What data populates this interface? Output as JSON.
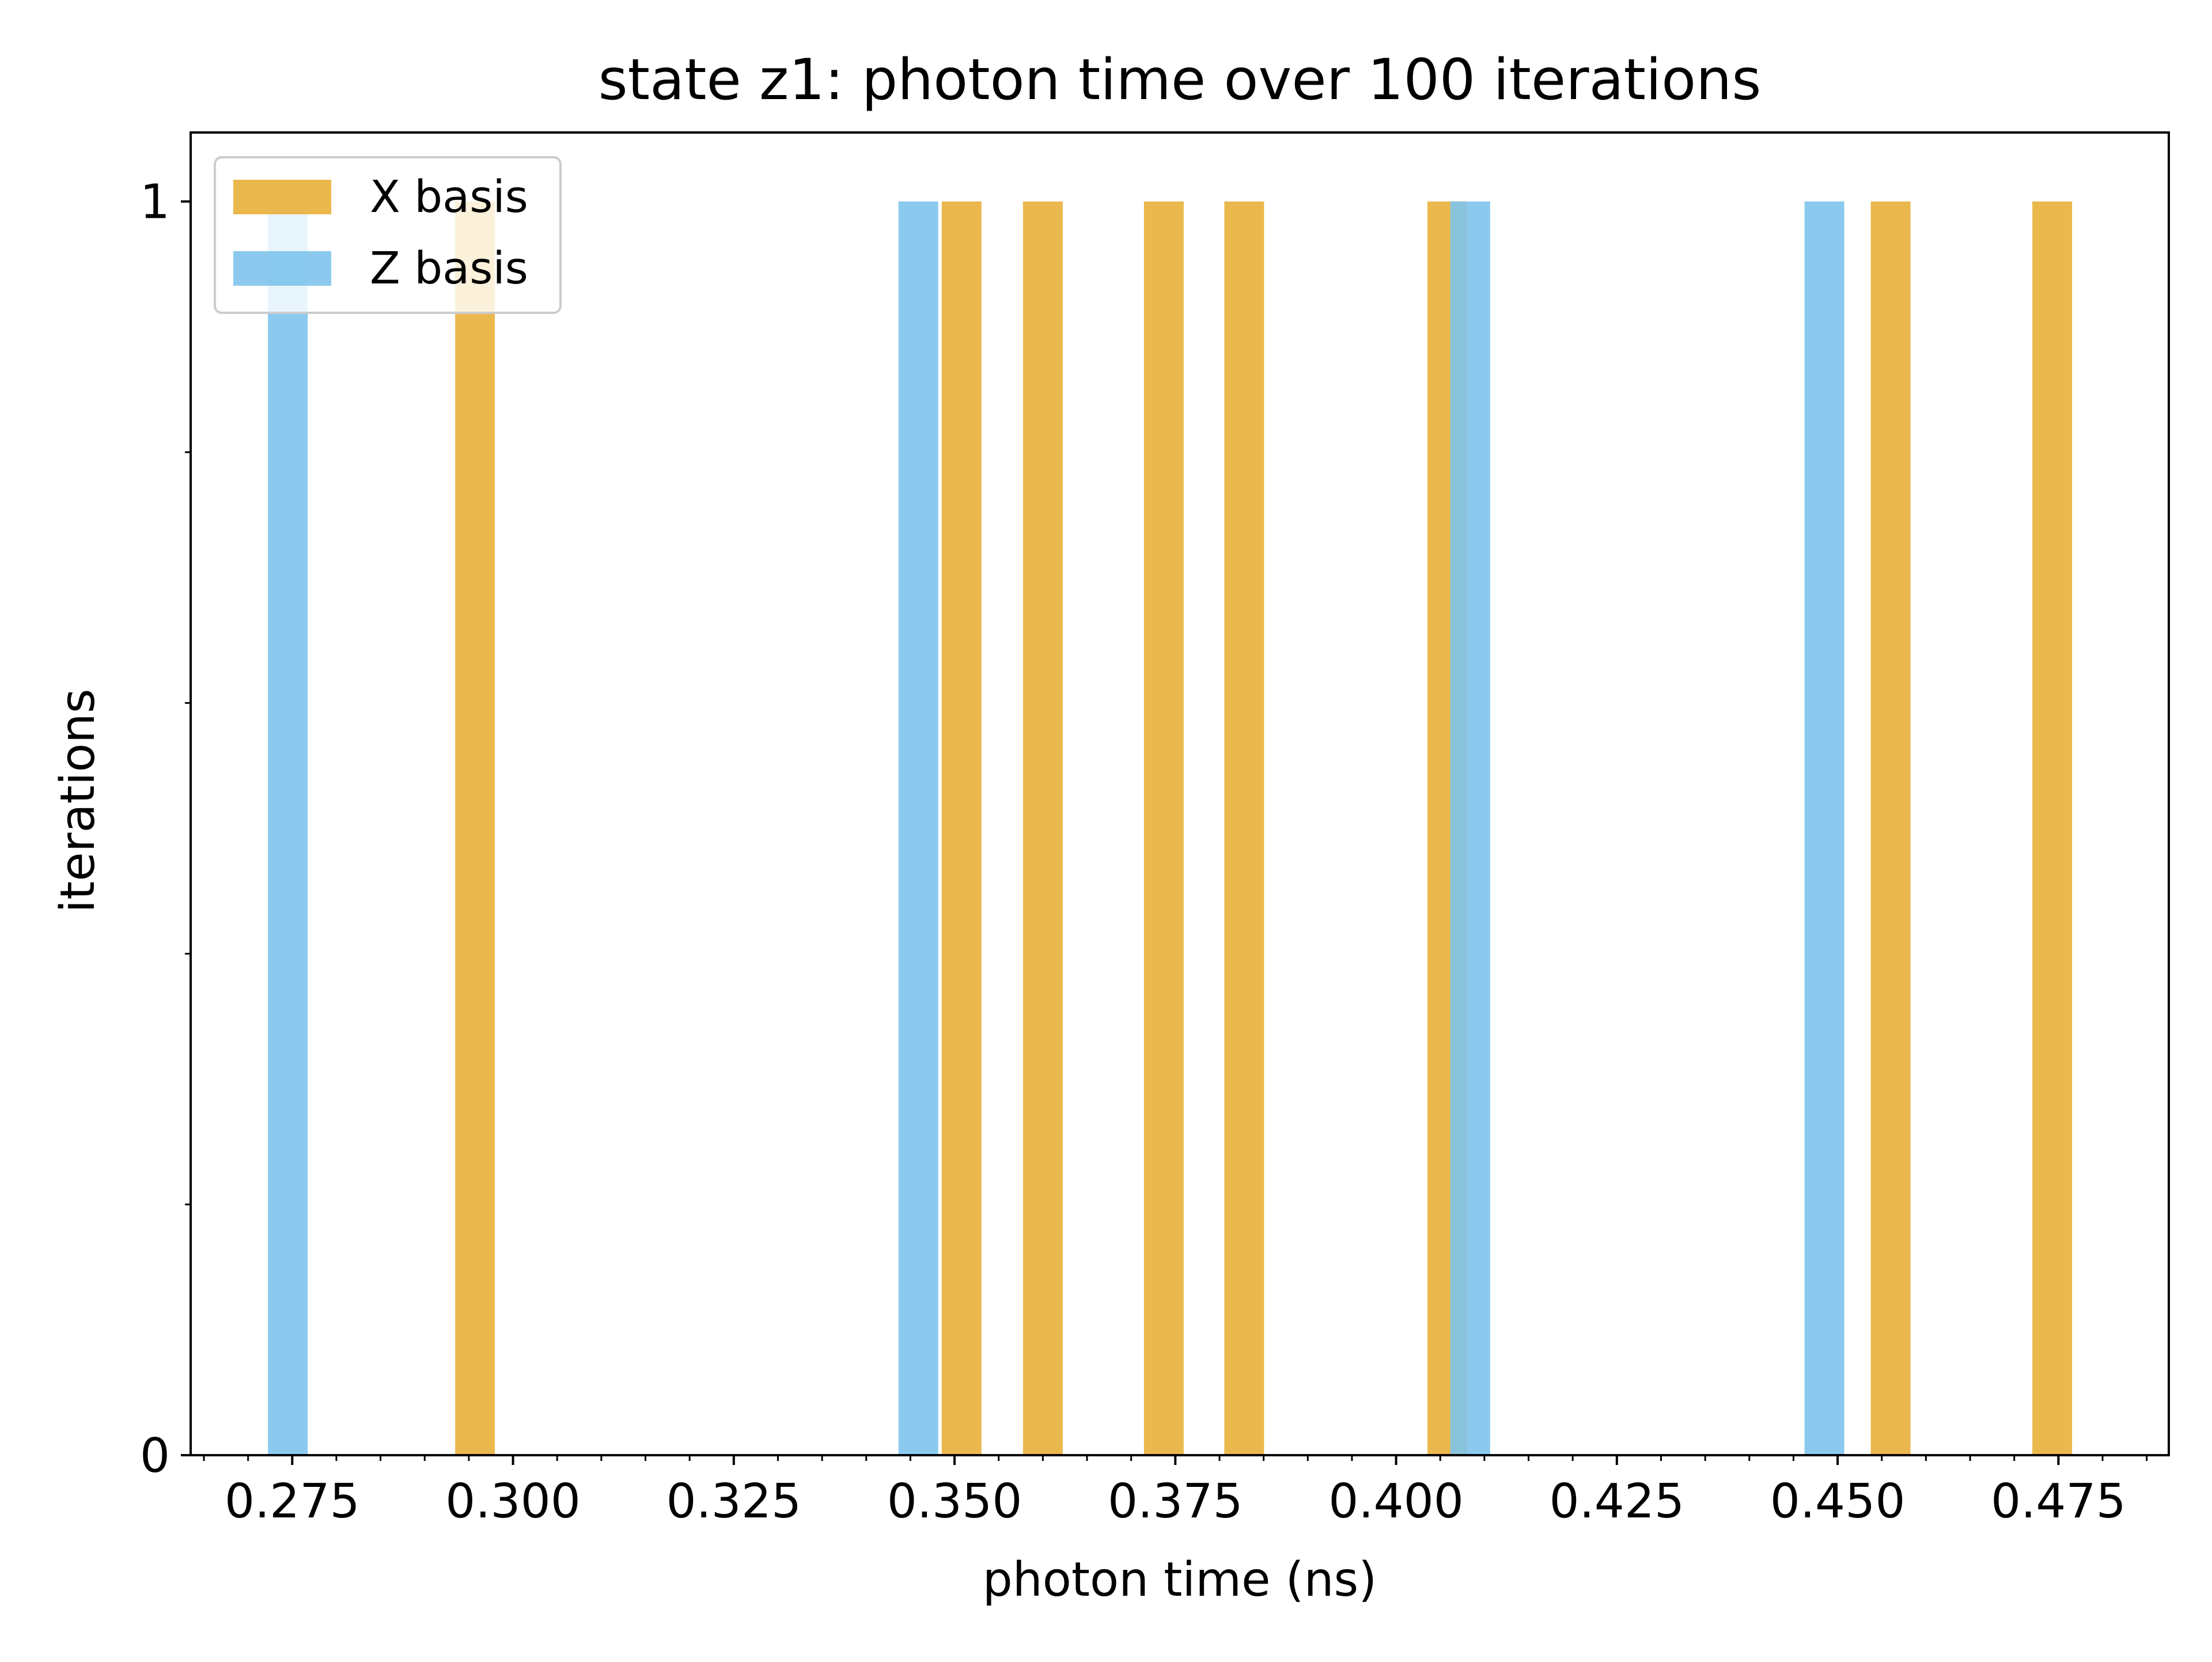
{
  "chart_data": {
    "type": "bar",
    "title": "state z1: photon time over 100 iterations",
    "xlabel": "photon time (ns)",
    "ylabel": "iterations",
    "xlim": [
      0.2635,
      0.4875
    ],
    "ylim": [
      0,
      1.055
    ],
    "x_ticks": [
      "0.275",
      "0.300",
      "0.325",
      "0.350",
      "0.375",
      "0.400",
      "0.425",
      "0.450",
      "0.475"
    ],
    "y_ticks": [
      "0",
      "1"
    ],
    "bar_width": 0.0045,
    "grid": false,
    "legend_position": "upper-left",
    "series": [
      {
        "name": "X basis",
        "color": "#E8AE36",
        "opacity": 0.88,
        "x": [
          0.2957,
          0.3508,
          0.36,
          0.3737,
          0.3828,
          0.4058,
          0.456,
          0.4743
        ],
        "values": [
          1,
          1,
          1,
          1,
          1,
          1,
          1,
          1
        ]
      },
      {
        "name": "Z basis",
        "color": "#7EC4EC",
        "opacity": 0.9,
        "x": [
          0.2745,
          0.3459,
          0.4084,
          0.4485
        ],
        "values": [
          1,
          1,
          1,
          1
        ]
      }
    ]
  }
}
